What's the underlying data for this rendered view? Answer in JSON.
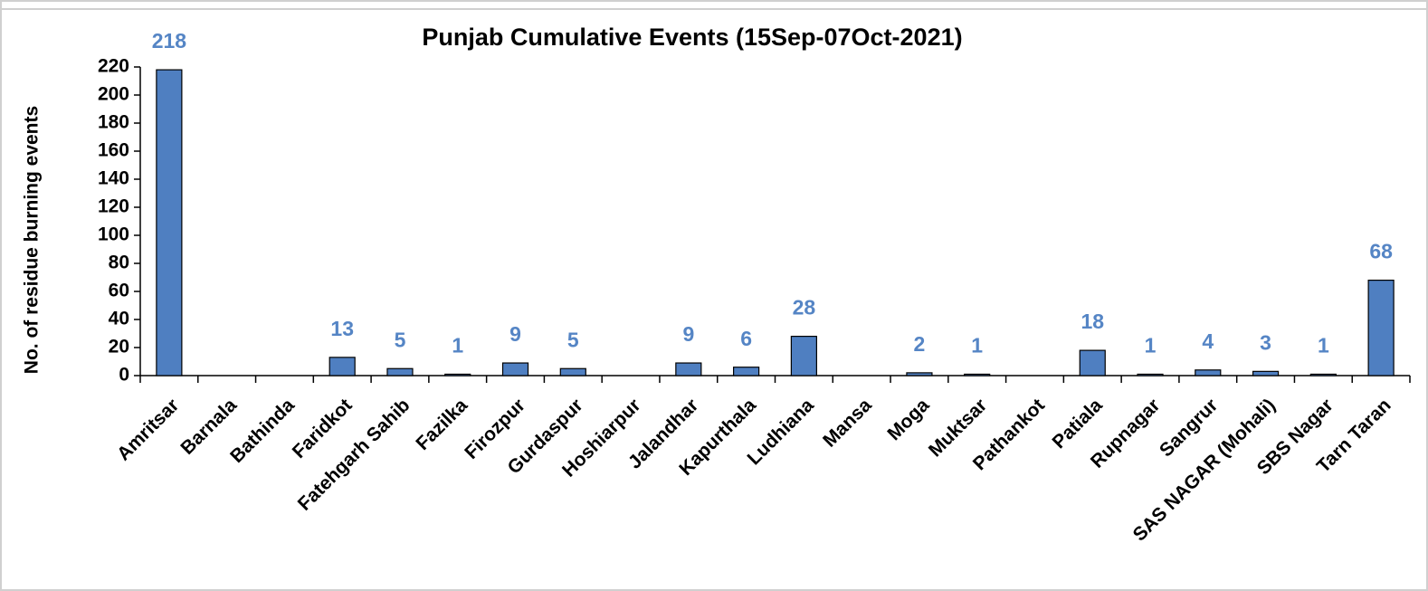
{
  "chart_data": {
    "type": "bar",
    "title": "Punjab Cumulative Events (15Sep-07Oct-2021)",
    "y_label": "No. of residue burning events",
    "categories": [
      "Amritsar",
      "Barnala",
      "Bathinda",
      "Faridkot",
      "Fatehgarh Sahib",
      "Fazilka",
      "Firozpur",
      "Gurdaspur",
      "Hoshiarpur",
      "Jalandhar",
      "Kapurthala",
      "Ludhiana",
      "Mansa",
      "Moga",
      "Muktsar",
      "Pathankot",
      "Patiala",
      "Rupnagar",
      "Sangrur",
      "SAS NAGAR (Mohali)",
      "SBS Nagar",
      "Tarn Taran"
    ],
    "values": [
      218,
      0,
      0,
      13,
      5,
      1,
      9,
      5,
      0,
      9,
      6,
      28,
      0,
      2,
      1,
      0,
      18,
      1,
      4,
      3,
      1,
      68
    ],
    "value_labels": [
      "218",
      null,
      null,
      "13",
      "5",
      "1",
      "9",
      "5",
      null,
      "9",
      "6",
      "28",
      null,
      "2",
      "1",
      null,
      "18",
      "1",
      "4",
      "3",
      "1",
      "68"
    ],
    "color": "#4f7fc1",
    "label_color": "#5585c5",
    "ylim": [
      0,
      220
    ],
    "yticks": [
      0,
      20,
      40,
      60,
      80,
      100,
      120,
      140,
      160,
      180,
      200,
      220
    ]
  }
}
